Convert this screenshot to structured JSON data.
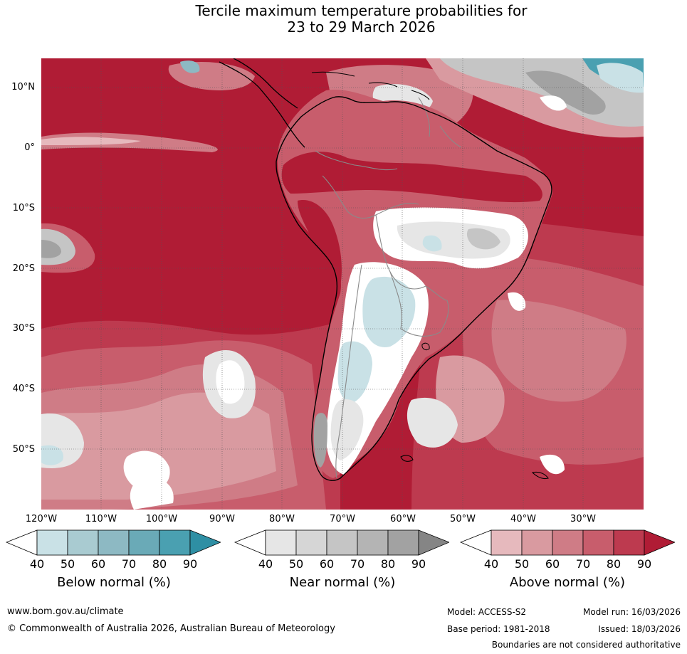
{
  "title": {
    "line1": "Tercile maximum temperature probabilities for",
    "line2": "23 to 29 March 2026"
  },
  "axes": {
    "lat_labels": [
      "10°N",
      "0°",
      "10°S",
      "20°S",
      "30°S",
      "40°S",
      "50°S"
    ],
    "lon_labels": [
      "120°W",
      "110°W",
      "100°W",
      "90°W",
      "80°W",
      "70°W",
      "60°W",
      "50°W",
      "40°W",
      "30°W"
    ]
  },
  "legends": [
    {
      "id": "below",
      "label": "Below normal (%)",
      "ticks": [
        "40",
        "50",
        "60",
        "70",
        "80",
        "90"
      ],
      "colors": [
        "#ffffff",
        "#c9e1e6",
        "#a9cbd1",
        "#8db9c3",
        "#6aaab7",
        "#4aa0b1",
        "#2e8fa4"
      ]
    },
    {
      "id": "near",
      "label": "Near normal (%)",
      "ticks": [
        "40",
        "50",
        "60",
        "70",
        "80",
        "90"
      ],
      "colors": [
        "#ffffff",
        "#e6e6e6",
        "#d6d6d6",
        "#c5c5c5",
        "#b4b4b4",
        "#a2a2a2",
        "#858585"
      ]
    },
    {
      "id": "above",
      "label": "Above normal (%)",
      "ticks": [
        "40",
        "50",
        "60",
        "70",
        "80",
        "90"
      ],
      "colors": [
        "#ffffff",
        "#e6b9bd",
        "#d99aa0",
        "#cf7c86",
        "#c85d6c",
        "#bd3a4f",
        "#b01c35"
      ]
    }
  ],
  "footer": {
    "website": "www.bom.gov.au/climate",
    "copyright": "© Commonwealth of Australia 2026, Australian Bureau of Meteorology",
    "model": "Model: ACCESS-S2",
    "base_period": "Base period: 1981-2018",
    "model_run": "Model run: 16/03/2026",
    "issued": "Issued: 18/03/2026",
    "disclaimer": "Boundaries are not considered authoritative"
  },
  "colors": {
    "ocean_above90": "#b01c35",
    "above80": "#bd3a4f",
    "above70": "#c85d6c",
    "above60": "#cf7c86",
    "above50": "#d99aa0",
    "above40": "#e6b9bd",
    "near50": "#e6e6e6",
    "near70": "#c5c5c5",
    "near80": "#a2a2a2",
    "below50": "#c9e1e6",
    "below80": "#4aa0b1",
    "coast": "#000000",
    "border": "#8a8a8a"
  }
}
